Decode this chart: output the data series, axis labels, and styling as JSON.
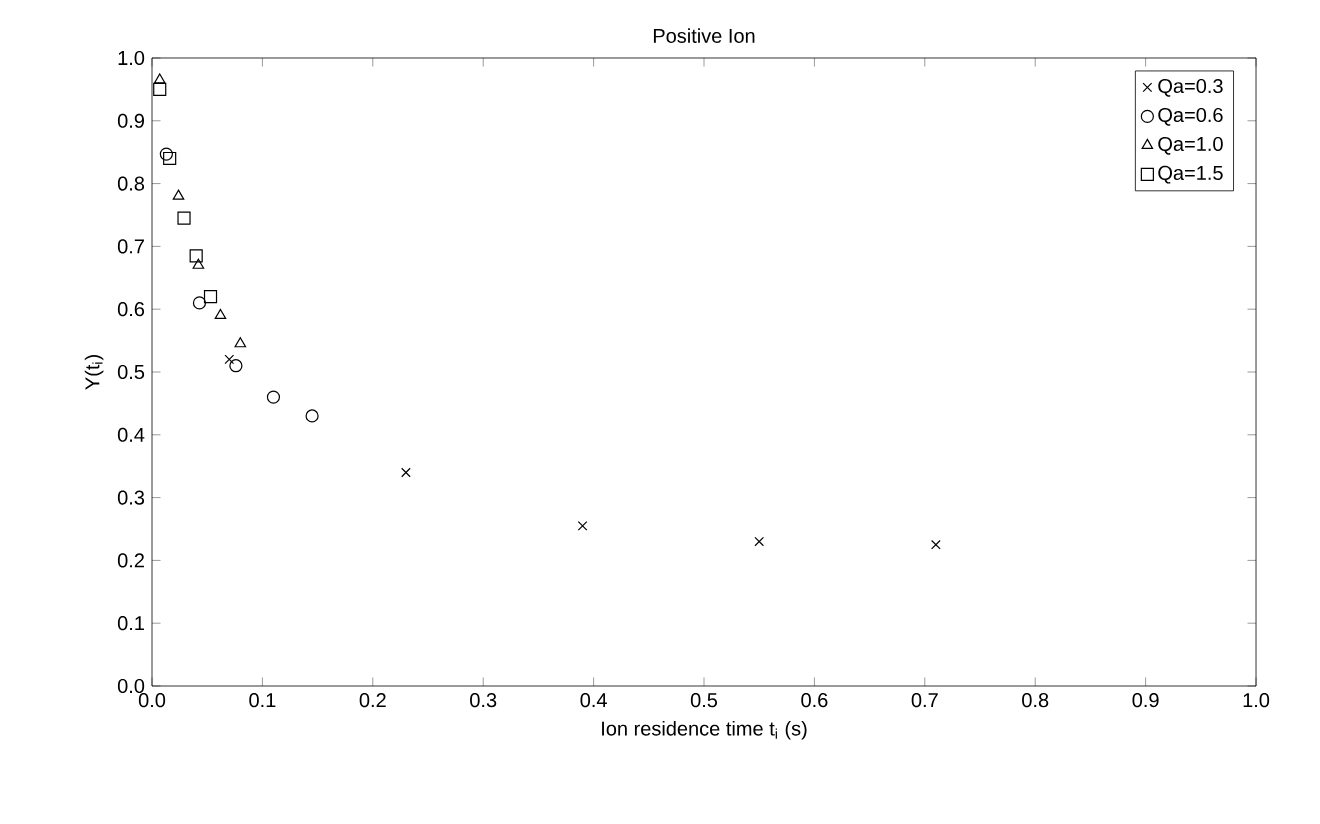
{
  "chart_data": {
    "type": "scatter",
    "title": "Positive Ion",
    "xlabel": "Ion residence time t$_{i}$ (s)",
    "ylabel": "Y(t$_{i}$)",
    "xlim": [
      0,
      1
    ],
    "ylim": [
      0,
      1
    ],
    "xticks": [
      {
        "value": 0,
        "label": "0.0"
      },
      0.1,
      0.2,
      0.3,
      0.4,
      0.5,
      0.6,
      0.7,
      0.8,
      0.9,
      {
        "value": 1,
        "label": "1.0"
      }
    ],
    "yticks": [
      {
        "value": 0,
        "label": "0.0"
      },
      0.1,
      0.2,
      0.3,
      0.4,
      0.5,
      0.6,
      0.7,
      0.8,
      0.9,
      {
        "value": 1,
        "label": "1.0"
      }
    ],
    "grid": false,
    "legend": "top right",
    "series": [
      {
        "name": "Qa=0.3",
        "color": "#000000",
        "marker": "cross",
        "x": [
          0.07,
          0.23,
          0.39,
          0.55,
          0.71
        ],
        "values": [
          0.52,
          0.34,
          0.255,
          0.23,
          0.225
        ]
      },
      {
        "name": "Qa=0.6",
        "color": "#000000",
        "marker": "circle",
        "x": [
          0.013,
          0.043,
          0.076,
          0.11,
          0.145
        ],
        "values": [
          0.847,
          0.61,
          0.51,
          0.46,
          0.43
        ]
      },
      {
        "name": "Qa=1.0",
        "color": "#000000",
        "marker": "triangle",
        "x": [
          0.007,
          0.024,
          0.042,
          0.062,
          0.08
        ],
        "values": [
          0.965,
          0.78,
          0.67,
          0.59,
          0.545
        ]
      },
      {
        "name": "Qa=1.5",
        "color": "#000000",
        "marker": "square",
        "x": [
          0.007,
          0.016,
          0.029,
          0.04,
          0.053
        ],
        "values": [
          0.95,
          0.84,
          0.745,
          0.685,
          0.62
        ]
      }
    ]
  }
}
